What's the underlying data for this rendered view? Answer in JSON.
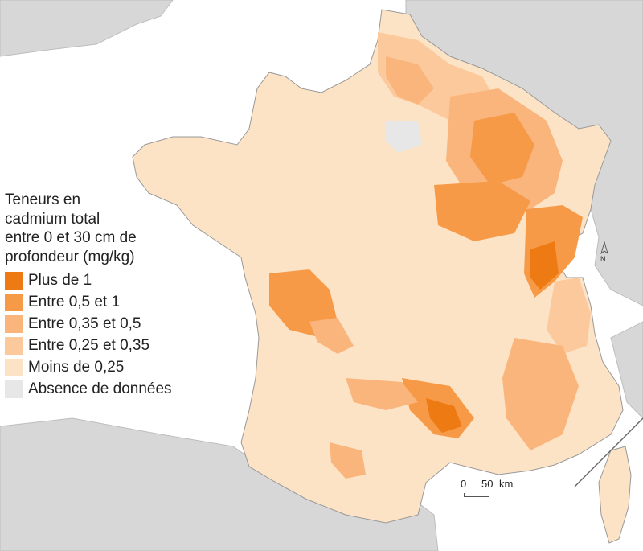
{
  "legend": {
    "title_lines": [
      "Teneurs en",
      "cadmium total",
      "entre 0 et 30 cm de",
      "profondeur (mg/kg)"
    ],
    "classes": [
      {
        "label": "Plus de 1",
        "color": "#ee7a14"
      },
      {
        "label": "Entre 0,5 et 1",
        "color": "#f79a48"
      },
      {
        "label": "Entre 0,35 et 0,5",
        "color": "#fab57c"
      },
      {
        "label": "Entre 0,25 et 0,35",
        "color": "#fcc99d"
      },
      {
        "label": "Moins de 0,25",
        "color": "#fde3c6"
      },
      {
        "label": "Absence de données",
        "color": "#e7e7e7"
      }
    ]
  },
  "scale": {
    "start": "0",
    "end": "50",
    "unit": "km"
  },
  "north_label": "N",
  "colors": {
    "sea": "#ffffff",
    "neighbors": "#d7d7d7",
    "land_base": "#fde3c6",
    "borders": "#8c8c8c"
  }
}
